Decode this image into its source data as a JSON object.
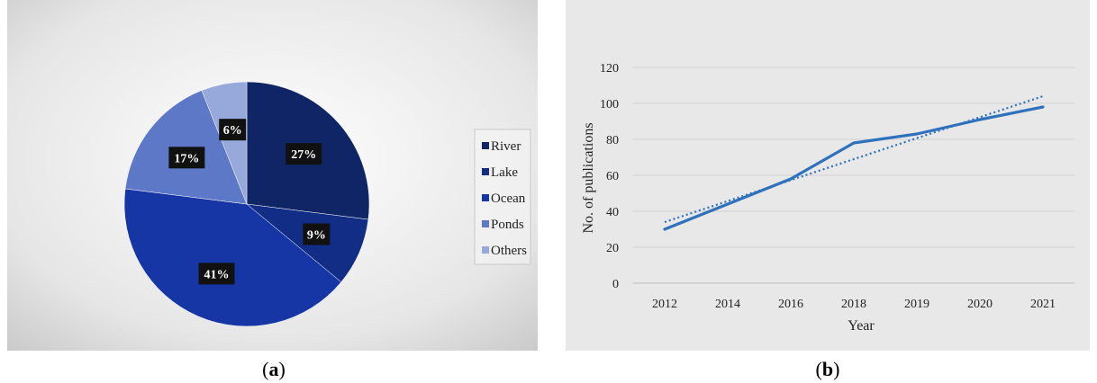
{
  "captions": {
    "a_open": "(",
    "a_letter": "a",
    "a_close": ")",
    "b_open": "(",
    "b_letter": "b",
    "b_close": ")"
  },
  "chart_data": [
    {
      "type": "pie",
      "slices": [
        {
          "label": "River",
          "value": 27,
          "display": "27%",
          "color": "#102566"
        },
        {
          "label": "Lake",
          "value": 9,
          "display": "9%",
          "color": "#112d86"
        },
        {
          "label": "Ocean",
          "value": 41,
          "display": "41%",
          "color": "#1736a6"
        },
        {
          "label": "Ponds",
          "value": 17,
          "display": "17%",
          "color": "#5d78c6"
        },
        {
          "label": "Others",
          "value": 6,
          "display": "6%",
          "color": "#97a9db"
        }
      ],
      "legend_placement": "right"
    },
    {
      "type": "line",
      "categories": [
        "2012",
        "2014",
        "2016",
        "2018",
        "2019",
        "2020",
        "2021"
      ],
      "series": [
        {
          "values": [
            30,
            44,
            58,
            78,
            83,
            91,
            98
          ],
          "color": "#2e71bd"
        }
      ],
      "trendline": {
        "start": 34,
        "end": 104,
        "style": "dotted",
        "color": "#2e71bd"
      },
      "xlabel": "Year",
      "ylabel": "No. of publications",
      "ylim": [
        0,
        120
      ],
      "yticks": [
        "0",
        "20",
        "40",
        "60",
        "80",
        "100",
        "120"
      ],
      "grid": true
    }
  ]
}
